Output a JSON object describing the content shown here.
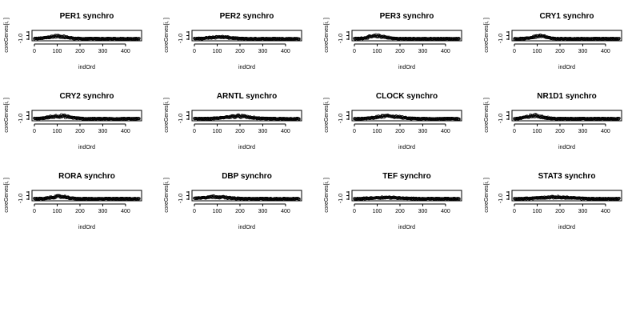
{
  "chart_data": [
    {
      "type": "scatter",
      "title": "PER1 synchro",
      "xlabel": "indOrd",
      "ylabel": "coreGenes[i, ]",
      "xticks": [
        0,
        100,
        200,
        300,
        400
      ],
      "yticks": [
        "-1.0"
      ],
      "xlim": [
        0,
        460
      ],
      "ylim": [
        -1.5,
        1.5
      ],
      "peak_x": 100,
      "peak_width": 55,
      "peak_height": 1.0
    },
    {
      "type": "scatter",
      "title": "PER2 synchro",
      "xlabel": "indOrd",
      "ylabel": "coreGenes[i, ]",
      "xticks": [
        0,
        100,
        200,
        300,
        400
      ],
      "yticks": [
        "-1.0"
      ],
      "xlim": [
        0,
        460
      ],
      "ylim": [
        -1.5,
        1.5
      ],
      "peak_x": 110,
      "peak_width": 60,
      "peak_height": 0.7
    },
    {
      "type": "scatter",
      "title": "PER3 synchro",
      "xlabel": "indOrd",
      "ylabel": "coreGenes[i, ]",
      "xticks": [
        0,
        100,
        200,
        300,
        400
      ],
      "yticks": [
        "-1.0"
      ],
      "xlim": [
        0,
        460
      ],
      "ylim": [
        -1.5,
        1.5
      ],
      "peak_x": 100,
      "peak_width": 50,
      "peak_height": 1.1
    },
    {
      "type": "scatter",
      "title": "CRY1 synchro",
      "xlabel": "indOrd",
      "ylabel": "coreGenes[i, ]",
      "xticks": [
        0,
        100,
        200,
        300,
        400
      ],
      "yticks": [
        "-1.0"
      ],
      "xlim": [
        0,
        460
      ],
      "ylim": [
        -1.5,
        1.5
      ],
      "peak_x": 110,
      "peak_width": 40,
      "peak_height": 1.1
    },
    {
      "type": "scatter",
      "title": "CRY2 synchro",
      "xlabel": "indOrd",
      "ylabel": "coreGenes[i, ]",
      "xticks": [
        0,
        100,
        200,
        300,
        400
      ],
      "yticks": [
        "-1.0"
      ],
      "xlim": [
        0,
        460
      ],
      "ylim": [
        -1.5,
        1.5
      ],
      "peak_x": 110,
      "peak_width": 60,
      "peak_height": 1.1
    },
    {
      "type": "scatter",
      "title": "ARNTL synchro",
      "xlabel": "indOrd",
      "ylabel": "coreGenes[i, ]",
      "xticks": [
        0,
        100,
        200,
        300,
        400
      ],
      "yticks": [
        "-1.0"
      ],
      "xlim": [
        0,
        460
      ],
      "ylim": [
        -1.5,
        1.5
      ],
      "peak_x": 190,
      "peak_width": 70,
      "peak_height": 1.0
    },
    {
      "type": "scatter",
      "title": "CLOCK synchro",
      "xlabel": "indOrd",
      "ylabel": "coreGenes[i, ]",
      "xticks": [
        0,
        100,
        200,
        300,
        400
      ],
      "yticks": [
        "-1.0"
      ],
      "xlim": [
        0,
        460
      ],
      "ylim": [
        -1.5,
        1.5
      ],
      "peak_x": 150,
      "peak_width": 65,
      "peak_height": 1.1
    },
    {
      "type": "scatter",
      "title": "NR1D1 synchro",
      "xlabel": "indOrd",
      "ylabel": "coreGenes[i, ]",
      "xticks": [
        0,
        100,
        200,
        300,
        400
      ],
      "yticks": [
        "-1.0"
      ],
      "xlim": [
        0,
        460
      ],
      "ylim": [
        -1.5,
        1.5
      ],
      "peak_x": 90,
      "peak_width": 50,
      "peak_height": 1.2
    },
    {
      "type": "scatter",
      "title": "RORA synchro",
      "xlabel": "indOrd",
      "ylabel": "coreGenes[i, ]",
      "xticks": [
        0,
        100,
        200,
        300,
        400
      ],
      "yticks": [
        "-1.0"
      ],
      "xlim": [
        0,
        460
      ],
      "ylim": [
        -1.5,
        1.5
      ],
      "peak_x": 110,
      "peak_width": 45,
      "peak_height": 0.9
    },
    {
      "type": "scatter",
      "title": "DBP synchro",
      "xlabel": "indOrd",
      "ylabel": "coreGenes[i, ]",
      "xticks": [
        0,
        100,
        200,
        300,
        400
      ],
      "yticks": [
        "-1.0"
      ],
      "xlim": [
        0,
        460
      ],
      "ylim": [
        -1.5,
        1.5
      ],
      "peak_x": 90,
      "peak_width": 70,
      "peak_height": 0.8
    },
    {
      "type": "scatter",
      "title": "TEF synchro",
      "xlabel": "indOrd",
      "ylabel": "coreGenes[i, ]",
      "xticks": [
        0,
        100,
        200,
        300,
        400
      ],
      "yticks": [
        "-1.0"
      ],
      "xlim": [
        0,
        460
      ],
      "ylim": [
        -1.5,
        1.5
      ],
      "peak_x": 140,
      "peak_width": 80,
      "peak_height": 0.5
    },
    {
      "type": "scatter",
      "title": "STAT3 synchro",
      "xlabel": "indOrd",
      "ylabel": "coreGenes[i, ]",
      "xticks": [
        0,
        100,
        200,
        300,
        400
      ],
      "yticks": [
        "-1.0"
      ],
      "xlim": [
        0,
        460
      ],
      "ylim": [
        -1.5,
        1.5
      ],
      "peak_x": 180,
      "peak_width": 90,
      "peak_height": 0.6
    }
  ]
}
